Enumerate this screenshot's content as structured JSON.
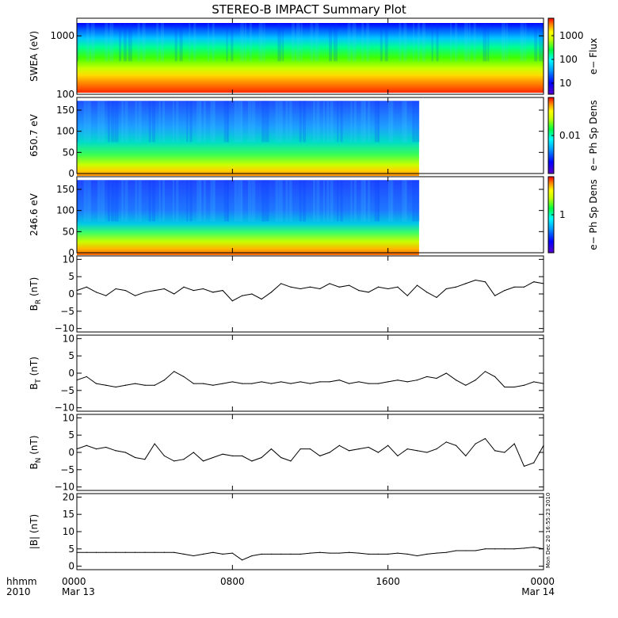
{
  "title": "STEREO-B IMPACT Summary Plot",
  "colors": {
    "line": "#000000",
    "background": "#ffffff"
  },
  "timestamp_text": "Mon Dec 20 16:55:23 2010",
  "chart_data": [
    {
      "type": "heatmap",
      "ylabel": "SWEA (eV)",
      "yscale": "log",
      "ylim": [
        100,
        2000
      ],
      "yticks": [
        "100",
        "1000"
      ],
      "x_coverage": [
        0,
        24
      ],
      "colorbar": {
        "label": "e− Flux",
        "scale": "log",
        "ticks": [
          "10",
          "100",
          "1000"
        ]
      }
    },
    {
      "type": "heatmap",
      "ylabel": "650.7 eV",
      "ylim": [
        0,
        180
      ],
      "yticks": [
        "0",
        "50",
        "100",
        "150"
      ],
      "x_coverage": [
        0,
        17.6
      ],
      "colorbar": {
        "label": "e− Ph Sp Dens",
        "scale": "log",
        "ticks": [
          "0.01"
        ]
      }
    },
    {
      "type": "heatmap",
      "ylabel": "246.6 eV",
      "ylim": [
        0,
        180
      ],
      "yticks": [
        "0",
        "50",
        "100",
        "150"
      ],
      "x_coverage": [
        0,
        17.6
      ],
      "colorbar": {
        "label": "e− Ph Sp Dens",
        "scale": "log",
        "ticks": [
          "1"
        ]
      }
    },
    {
      "type": "line",
      "ylabel_main": "B",
      "ylabel_sub": "R",
      "ylabel_unit": " (nT)",
      "ylim": [
        -11,
        11
      ],
      "yticks": [
        "10",
        "5",
        "0",
        "−5",
        "−10"
      ],
      "x": [
        0,
        0.5,
        1,
        1.5,
        2,
        2.5,
        3,
        3.5,
        4,
        4.5,
        5,
        5.5,
        6,
        6.5,
        7,
        7.5,
        8,
        8.5,
        9,
        9.5,
        10,
        10.5,
        11,
        11.5,
        12,
        12.5,
        13,
        13.5,
        14,
        14.5,
        15,
        15.5,
        16,
        16.5,
        17,
        17.5,
        18,
        18.5,
        19,
        19.5,
        20,
        20.5,
        21,
        21.5,
        22,
        22.5,
        23,
        23.5,
        24
      ],
      "values": [
        1,
        2,
        0.5,
        -0.5,
        1.5,
        1,
        -0.5,
        0.5,
        1,
        1.5,
        0,
        2,
        1,
        1.5,
        0.5,
        1,
        -2,
        -0.5,
        0,
        -1.5,
        0.5,
        3,
        2,
        1.5,
        2,
        1.5,
        3,
        2,
        2.5,
        1,
        0.5,
        2,
        1.5,
        2,
        -0.5,
        2.5,
        0.5,
        -1,
        1.5,
        2,
        3,
        4,
        3.5,
        -0.5,
        1,
        2,
        2,
        3.5,
        3
      ]
    },
    {
      "type": "line",
      "ylabel_main": "B",
      "ylabel_sub": "T",
      "ylabel_unit": " (nT)",
      "ylim": [
        -11,
        11
      ],
      "yticks": [
        "10",
        "5",
        "0",
        "−5",
        "−10"
      ],
      "x": [
        0,
        0.5,
        1,
        1.5,
        2,
        2.5,
        3,
        3.5,
        4,
        4.5,
        5,
        5.5,
        6,
        6.5,
        7,
        7.5,
        8,
        8.5,
        9,
        9.5,
        10,
        10.5,
        11,
        11.5,
        12,
        12.5,
        13,
        13.5,
        14,
        14.5,
        15,
        15.5,
        16,
        16.5,
        17,
        17.5,
        18,
        18.5,
        19,
        19.5,
        20,
        20.5,
        21,
        21.5,
        22,
        22.5,
        23,
        23.5,
        24
      ],
      "values": [
        -2,
        -1,
        -3,
        -3.5,
        -4,
        -3.5,
        -3,
        -3.5,
        -3.5,
        -2,
        0.5,
        -1,
        -3,
        -3,
        -3.5,
        -3,
        -2.5,
        -3,
        -3,
        -2.5,
        -3,
        -2.5,
        -3,
        -2.5,
        -3,
        -2.5,
        -2.5,
        -2,
        -3,
        -2.5,
        -3,
        -3,
        -2.5,
        -2,
        -2.5,
        -2,
        -1,
        -1.5,
        0,
        -2,
        -3.5,
        -2,
        0.5,
        -1,
        -4,
        -4,
        -3.5,
        -2.5,
        -3
      ]
    },
    {
      "type": "line",
      "ylabel_main": "B",
      "ylabel_sub": "N",
      "ylabel_unit": " (nT)",
      "ylim": [
        -11,
        11
      ],
      "yticks": [
        "10",
        "5",
        "0",
        "−5",
        "−10"
      ],
      "x": [
        0,
        0.5,
        1,
        1.5,
        2,
        2.5,
        3,
        3.5,
        4,
        4.5,
        5,
        5.5,
        6,
        6.5,
        7,
        7.5,
        8,
        8.5,
        9,
        9.5,
        10,
        10.5,
        11,
        11.5,
        12,
        12.5,
        13,
        13.5,
        14,
        14.5,
        15,
        15.5,
        16,
        16.5,
        17,
        17.5,
        18,
        18.5,
        19,
        19.5,
        20,
        20.5,
        21,
        21.5,
        22,
        22.5,
        23,
        23.5,
        24
      ],
      "values": [
        1,
        2,
        1,
        1.5,
        0.5,
        0,
        -1.5,
        -2,
        2.5,
        -1,
        -2.5,
        -2,
        0,
        -2.5,
        -1.5,
        -0.5,
        -1,
        -1,
        -2.5,
        -1.5,
        1,
        -1.5,
        -2.5,
        1,
        1,
        -1,
        0,
        2,
        0.5,
        1,
        1.5,
        0,
        2,
        -1,
        1,
        0.5,
        0,
        1,
        3,
        2,
        -1,
        2.5,
        4,
        0.5,
        0,
        2.5,
        -4,
        -3,
        2
      ]
    },
    {
      "type": "line",
      "ylabel_main": "|B|",
      "ylabel_sub": "",
      "ylabel_unit": " (nT)",
      "ylim": [
        -1,
        21
      ],
      "yticks": [
        "20",
        "15",
        "10",
        "5",
        "0"
      ],
      "x": [
        0,
        0.5,
        1,
        1.5,
        2,
        2.5,
        3,
        3.5,
        4,
        4.5,
        5,
        5.5,
        6,
        6.5,
        7,
        7.5,
        8,
        8.5,
        9,
        9.5,
        10,
        10.5,
        11,
        11.5,
        12,
        12.5,
        13,
        13.5,
        14,
        14.5,
        15,
        15.5,
        16,
        16.5,
        17,
        17.5,
        18,
        18.5,
        19,
        19.5,
        20,
        20.5,
        21,
        21.5,
        22,
        22.5,
        23,
        23.5,
        24
      ],
      "values": [
        4,
        4,
        4,
        4,
        4,
        4,
        4,
        4,
        4,
        4,
        4,
        3.5,
        3,
        3.5,
        4,
        3.5,
        3.8,
        1.8,
        3,
        3.5,
        3.5,
        3.5,
        3.5,
        3.5,
        3.8,
        4,
        3.8,
        3.8,
        4,
        3.8,
        3.5,
        3.5,
        3.5,
        3.8,
        3.5,
        3,
        3.5,
        3.8,
        4,
        4.5,
        4.5,
        4.5,
        5,
        5,
        5,
        5,
        5.2,
        5.5,
        5
      ]
    }
  ],
  "x_axis": {
    "label_top": "hhmm",
    "label_bottom": "2010",
    "ticks": [
      {
        "value": 0,
        "label": "0000",
        "sublabel": "Mar 13"
      },
      {
        "value": 8,
        "label": "0800",
        "sublabel": ""
      },
      {
        "value": 16,
        "label": "1600",
        "sublabel": ""
      },
      {
        "value": 24,
        "label": "0000",
        "sublabel": "Mar 14"
      }
    ]
  }
}
